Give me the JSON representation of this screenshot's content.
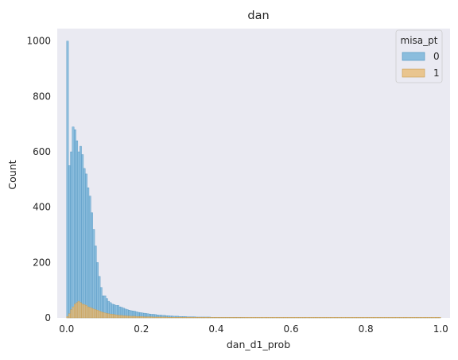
{
  "chart_data": {
    "type": "bar",
    "subtype": "stacked histogram",
    "title": "dan",
    "xlabel": "dan_d1_prob",
    "ylabel": "Count",
    "xlim": [
      -0.025,
      1.025
    ],
    "ylim": [
      0,
      1045
    ],
    "xticks": [
      0.0,
      0.2,
      0.4,
      0.6,
      0.8,
      1.0
    ],
    "xtick_labels": [
      "0.0",
      "0.2",
      "0.4",
      "0.6",
      "0.8",
      "1.0"
    ],
    "yticks": [
      0,
      200,
      400,
      600,
      800,
      1000
    ],
    "ytick_labels": [
      "0",
      "200",
      "400",
      "600",
      "800",
      "1000"
    ],
    "grid": false,
    "background": "#eaeaf2",
    "bin_width": 0.005,
    "bin_start": 0.0,
    "legend": {
      "title": "misa_pt",
      "placement": "top-right",
      "entries": [
        "0",
        "1"
      ]
    },
    "series": [
      {
        "name": "0",
        "color": "#6baed6",
        "edge": "#4a90be",
        "values": [
          1000,
          550,
          600,
          690,
          680,
          640,
          600,
          620,
          590,
          540,
          520,
          470,
          440,
          380,
          320,
          260,
          200,
          150,
          110,
          80,
          80,
          70,
          60,
          55,
          50,
          48,
          45,
          45,
          40,
          38,
          35,
          32,
          30,
          28,
          26,
          25,
          24,
          22,
          20,
          19,
          18,
          17,
          16,
          15,
          14,
          13,
          13,
          12,
          11,
          10,
          10,
          9,
          9,
          8,
          8,
          7,
          7,
          6,
          6,
          6,
          5,
          5,
          5,
          5,
          4,
          4,
          4,
          4,
          4,
          3,
          3,
          3,
          3,
          3,
          3,
          3,
          3,
          2,
          2,
          2,
          2,
          2,
          2,
          2,
          2,
          2,
          2,
          2,
          2,
          2,
          2,
          2,
          2,
          2,
          2,
          1,
          1,
          1,
          1,
          1,
          1,
          1,
          1,
          1,
          1,
          1,
          1,
          1,
          1,
          1,
          1,
          1,
          1,
          1,
          1,
          1,
          1,
          1,
          1,
          1,
          1,
          1,
          1,
          1,
          1,
          1,
          1,
          1,
          1,
          1,
          1,
          1,
          1,
          1,
          1,
          1,
          1,
          1,
          1,
          1,
          1,
          1,
          1,
          1,
          1,
          1,
          1,
          1,
          1,
          1,
          1,
          1,
          1,
          1,
          1,
          1,
          1,
          1,
          1,
          1,
          1,
          1,
          1,
          1,
          1,
          1,
          1,
          1,
          1,
          1,
          1,
          1,
          1,
          1,
          1,
          1,
          1,
          1,
          1,
          1,
          1,
          1,
          1,
          1,
          1,
          1,
          1,
          1,
          1,
          1,
          1,
          1,
          1,
          1,
          1,
          1,
          1,
          1,
          1,
          1
        ]
      },
      {
        "name": "1",
        "color": "#e8b86d",
        "edge": "#c99a4a",
        "values": [
          5,
          15,
          30,
          40,
          50,
          55,
          60,
          55,
          50,
          48,
          45,
          40,
          38,
          35,
          32,
          30,
          28,
          25,
          22,
          20,
          18,
          16,
          15,
          14,
          13,
          12,
          11,
          10,
          9,
          9,
          8,
          8,
          7,
          7,
          6,
          6,
          6,
          5,
          5,
          5,
          5,
          4,
          4,
          4,
          4,
          4,
          3,
          3,
          3,
          3,
          3,
          3,
          3,
          3,
          2,
          2,
          2,
          2,
          2,
          2,
          2,
          2,
          2,
          2,
          2,
          2,
          2,
          2,
          2,
          2,
          2,
          2,
          2,
          2,
          2,
          2,
          2,
          2,
          2,
          2,
          2,
          2,
          2,
          2,
          2,
          2,
          2,
          2,
          2,
          2,
          2,
          2,
          2,
          2,
          2,
          2,
          2,
          2,
          2,
          2,
          2,
          2,
          2,
          2,
          2,
          2,
          2,
          2,
          2,
          2,
          2,
          2,
          2,
          2,
          2,
          2,
          2,
          2,
          2,
          2,
          2,
          2,
          2,
          2,
          2,
          2,
          2,
          2,
          2,
          2,
          2,
          2,
          2,
          2,
          2,
          2,
          2,
          2,
          2,
          2,
          2,
          2,
          2,
          2,
          2,
          2,
          2,
          2,
          2,
          2,
          2,
          2,
          2,
          2,
          2,
          2,
          2,
          2,
          2,
          2,
          2,
          2,
          2,
          2,
          2,
          2,
          2,
          2,
          2,
          2,
          2,
          2,
          2,
          2,
          2,
          2,
          2,
          2,
          2,
          2,
          2,
          2,
          2,
          2,
          2,
          2,
          2,
          2,
          2,
          2,
          2,
          2,
          2,
          2,
          2,
          2,
          2,
          2,
          2,
          2
        ]
      }
    ]
  }
}
